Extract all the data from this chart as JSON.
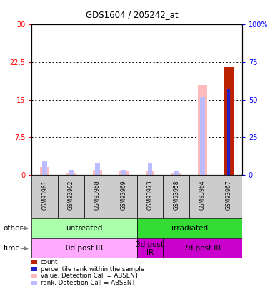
{
  "title": "GDS1604 / 205242_at",
  "samples": [
    "GSM93961",
    "GSM93962",
    "GSM93968",
    "GSM93969",
    "GSM93973",
    "GSM93958",
    "GSM93964",
    "GSM93967"
  ],
  "count_values": [
    0,
    0,
    0,
    0,
    0,
    0,
    0,
    21.5
  ],
  "percentile_rank": [
    0,
    0,
    0,
    0,
    0,
    0,
    0,
    57
  ],
  "value_absent": [
    1.5,
    0.3,
    1.0,
    0.8,
    0.8,
    0.3,
    18.0,
    0
  ],
  "rank_absent_pct": [
    9.0,
    3.5,
    7.5,
    3.5,
    7.5,
    2.5,
    52.0,
    57.0
  ],
  "ylim_left": [
    0,
    30
  ],
  "ylim_right": [
    0,
    100
  ],
  "yticks_left": [
    0,
    7.5,
    15,
    22.5,
    30
  ],
  "yticks_right": [
    0,
    25,
    50,
    75,
    100
  ],
  "ytick_labels_left": [
    "0",
    "7.5",
    "15",
    "22.5",
    "30"
  ],
  "ytick_labels_right": [
    "0",
    "25",
    "50",
    "75",
    "100%"
  ],
  "other_row": [
    {
      "label": "untreated",
      "start": 0,
      "end": 4,
      "color": "#aaffaa"
    },
    {
      "label": "irradiated",
      "start": 4,
      "end": 8,
      "color": "#33dd33"
    }
  ],
  "time_row": [
    {
      "label": "0d post IR",
      "start": 0,
      "end": 4,
      "color": "#ffaaff"
    },
    {
      "label": "3d post\nIR",
      "start": 4,
      "end": 5,
      "color": "#cc00cc"
    },
    {
      "label": "7d post IR",
      "start": 5,
      "end": 8,
      "color": "#cc00cc"
    }
  ],
  "colors": {
    "count": "#bb2200",
    "percentile_rank": "#2222cc",
    "value_absent": "#ffbbbb",
    "rank_absent": "#bbbbff"
  },
  "legend_items": [
    {
      "color": "#bb2200",
      "label": "count"
    },
    {
      "color": "#2222cc",
      "label": "percentile rank within the sample"
    },
    {
      "color": "#ffbbbb",
      "label": "value, Detection Call = ABSENT"
    },
    {
      "color": "#bbbbff",
      "label": "rank, Detection Call = ABSENT"
    }
  ],
  "sample_area_color": "#cccccc"
}
